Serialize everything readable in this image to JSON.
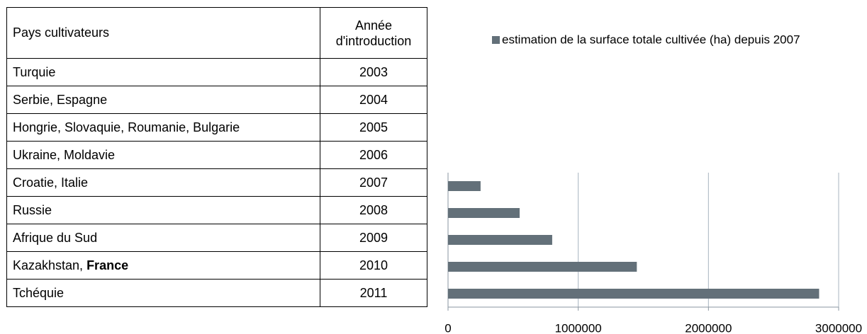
{
  "table": {
    "header": [
      "Pays cultivateurs",
      "Année d'introduction"
    ],
    "rows": [
      {
        "country": "Turquie",
        "year": 2003
      },
      {
        "country": "Serbie, Espagne",
        "year": 2004
      },
      {
        "country": "Hongrie, Slovaquie, Roumanie, Bulgarie",
        "year": 2005
      },
      {
        "country": "Ukraine, Moldavie",
        "year": 2006
      },
      {
        "country": "Croatie, Italie",
        "year": 2007
      },
      {
        "country": "Russie",
        "year": 2008
      },
      {
        "country": "Afrique du Sud",
        "year": 2009
      },
      {
        "country": "Kazakhstan, ",
        "country_bold": "France",
        "year": 2010
      },
      {
        "country": "Tchéquie",
        "year": 2011
      }
    ]
  },
  "chart_data": {
    "type": "barh",
    "categories": [
      null,
      null,
      null,
      null,
      null
    ],
    "series": [
      {
        "name": "estimation de la surface totale cultivée (ha) depuis 2007",
        "color": "#637079",
        "values": [
          250000,
          550000,
          800000,
          1450000,
          2850000
        ]
      }
    ],
    "xlim": [
      0,
      3000000
    ],
    "xticks": [
      0,
      1000000,
      2000000,
      3000000
    ],
    "grid": true,
    "legend": "top"
  }
}
